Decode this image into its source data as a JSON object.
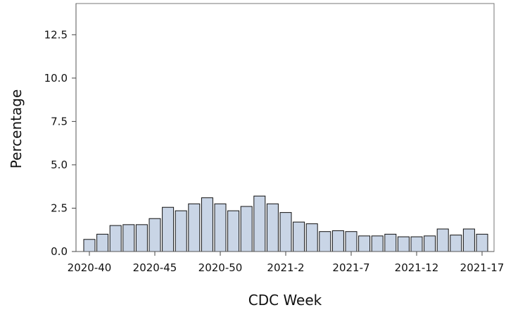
{
  "chart_data": {
    "type": "bar",
    "xlabel": "CDC Week",
    "ylabel": "Percentage",
    "ylim": [
      0,
      14.3
    ],
    "yticks": [
      0.0,
      2.5,
      5.0,
      7.5,
      10.0,
      12.5
    ],
    "ytick_labels": [
      "0.0",
      "2.5",
      "5.0",
      "7.5",
      "10.0",
      "12.5"
    ],
    "xtick_labels": [
      {
        "label": "2020-40",
        "category": "2020-40"
      },
      {
        "label": "2020-45",
        "category": "2020-45"
      },
      {
        "label": "2020-50",
        "category": "2020-50"
      },
      {
        "label": "2021-2",
        "category": "2021-2"
      },
      {
        "label": "2021-7",
        "category": "2021-7"
      },
      {
        "label": "2021-12",
        "category": "2021-12"
      },
      {
        "label": "2021-17",
        "category": "2021-17"
      }
    ],
    "categories": [
      "2020-40",
      "2020-41",
      "2020-42",
      "2020-43",
      "2020-44",
      "2020-45",
      "2020-46",
      "2020-47",
      "2020-48",
      "2020-49",
      "2020-50",
      "2020-51",
      "2020-52",
      "2020-53",
      "2021-1",
      "2021-2",
      "2021-3",
      "2021-4",
      "2021-5",
      "2021-6",
      "2021-7",
      "2021-8",
      "2021-9",
      "2021-10",
      "2021-11",
      "2021-12",
      "2021-13",
      "2021-14",
      "2021-15",
      "2021-16",
      "2021-17"
    ],
    "values": [
      0.7,
      1.0,
      1.5,
      1.55,
      1.55,
      1.9,
      2.55,
      2.35,
      2.75,
      3.1,
      2.75,
      2.35,
      2.6,
      3.2,
      2.75,
      2.25,
      1.7,
      1.6,
      1.15,
      1.2,
      1.15,
      0.9,
      0.9,
      1.0,
      0.85,
      0.85,
      0.9,
      1.3,
      0.95,
      1.3,
      1.0
    ],
    "bar_color": "#c9d5e6",
    "bar_edge_color": "#111111",
    "grid": false
  }
}
